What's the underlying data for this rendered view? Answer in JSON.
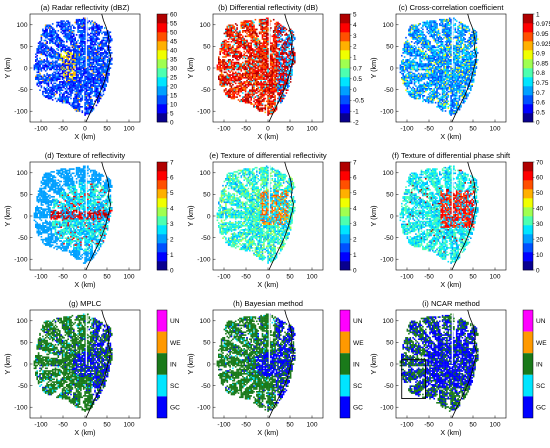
{
  "figure": {
    "panels": [
      {
        "title": "(a) Radar reflectivity (dBZ)",
        "colorbar": {
          "type": "continuous",
          "ticks": [
            "60",
            "55",
            "50",
            "45",
            "40",
            "35",
            "30",
            "25",
            "20",
            "15",
            "10",
            "5",
            "0"
          ],
          "colors": [
            "#08008f",
            "#0000ff",
            "#0050ff",
            "#00a0ff",
            "#00e5ff",
            "#4dffb0",
            "#a0ff50",
            "#f0ff00",
            "#ffb000",
            "#ff5000",
            "#ff0000",
            "#b00000"
          ]
        },
        "field": "reflectivity"
      },
      {
        "title": "(b) Differential reflectivity (dB)",
        "colorbar": {
          "type": "continuous",
          "ticks": [
            "5",
            "4",
            "3",
            "2",
            "1",
            "0.7",
            "0.5",
            "0",
            "-0.5",
            "-1",
            "-2"
          ],
          "colors": [
            "#08008f",
            "#0000ff",
            "#0050ff",
            "#00a0ff",
            "#00e5ff",
            "#4dffb0",
            "#a0ff50",
            "#f0ff00",
            "#ffb000",
            "#ff5000",
            "#ff0000",
            "#b00000"
          ]
        },
        "field": "zdr"
      },
      {
        "title": "(c) Cross-correlation coefficient",
        "colorbar": {
          "type": "continuous",
          "ticks": [
            "1",
            "0.975",
            "0.95",
            "0.925",
            "0.9",
            "0.85",
            "0.8",
            "0.75",
            "0.7",
            "0.6",
            "0.5",
            "0"
          ],
          "colors": [
            "#08008f",
            "#0000ff",
            "#0050ff",
            "#00a0ff",
            "#00e5ff",
            "#4dffb0",
            "#a0ff50",
            "#f0ff00",
            "#ffb000",
            "#ff5000",
            "#ff0000",
            "#b00000"
          ]
        },
        "field": "rhohv"
      },
      {
        "title": "(d) Texture of reflectivity",
        "colorbar": {
          "type": "continuous",
          "ticks": [
            "7",
            "6",
            "5",
            "4",
            "3",
            "2",
            "1",
            "0"
          ],
          "colors": [
            "#08008f",
            "#0000ff",
            "#0050ff",
            "#00a0ff",
            "#00e5ff",
            "#4dffb0",
            "#a0ff50",
            "#f0ff00",
            "#ffb000",
            "#ff5000",
            "#ff0000",
            "#b00000"
          ]
        },
        "field": "texz"
      },
      {
        "title": "(e) Texture of differential reflectivity",
        "colorbar": {
          "type": "continuous",
          "ticks": [
            "7",
            "6",
            "5",
            "4",
            "3",
            "2",
            "1",
            "0"
          ],
          "colors": [
            "#08008f",
            "#0000ff",
            "#0050ff",
            "#00a0ff",
            "#00e5ff",
            "#4dffb0",
            "#a0ff50",
            "#f0ff00",
            "#ffb000",
            "#ff5000",
            "#ff0000",
            "#b00000"
          ]
        },
        "field": "texzdr"
      },
      {
        "title": "(f) Texture of differential phase shift",
        "colorbar": {
          "type": "continuous",
          "ticks": [
            "70",
            "60",
            "50",
            "40",
            "30",
            "20",
            "10",
            "0"
          ],
          "colors": [
            "#08008f",
            "#0000ff",
            "#0050ff",
            "#00a0ff",
            "#00e5ff",
            "#4dffb0",
            "#a0ff50",
            "#f0ff00",
            "#ffb000",
            "#ff5000",
            "#ff0000",
            "#b00000"
          ]
        },
        "field": "texphi"
      },
      {
        "title": "(g) MPLC",
        "colorbar": {
          "type": "categorical",
          "ticks": [
            "UN",
            "WE",
            "IN",
            "SC",
            "GC"
          ],
          "colors": [
            "#ff00ff",
            "#ff9900",
            "#1a7a1a",
            "#00e5ff",
            "#0000ff"
          ]
        },
        "field": "class"
      },
      {
        "title": "(h) Bayesian method",
        "colorbar": {
          "type": "categorical",
          "ticks": [
            "UN",
            "WE",
            "IN",
            "SC",
            "GC"
          ],
          "colors": [
            "#ff00ff",
            "#ff9900",
            "#1a7a1a",
            "#00e5ff",
            "#0000ff"
          ]
        },
        "field": "class"
      },
      {
        "title": "(i) NCAR method",
        "colorbar": {
          "type": "categorical",
          "ticks": [
            "UN",
            "WE",
            "IN",
            "SC",
            "GC"
          ],
          "colors": [
            "#ff00ff",
            "#ff9900",
            "#1a7a1a",
            "#00e5ff",
            "#0000ff"
          ]
        },
        "field": "class2"
      }
    ],
    "xlabel": "X (km)",
    "ylabel": "Y (km)",
    "xticks": [
      "-100",
      "-50",
      "0",
      "50",
      "100"
    ],
    "yticks": [
      "100",
      "50",
      "0",
      "-50",
      "-100"
    ]
  },
  "chart_data": [
    {
      "type": "heatmap",
      "title": "(a) Radar reflectivity (dBZ)",
      "xlabel": "X (km)",
      "ylabel": "Y (km)",
      "xlim": [
        -125,
        125
      ],
      "ylim": [
        -125,
        125
      ],
      "colorbar_range": [
        0,
        60
      ]
    },
    {
      "type": "heatmap",
      "title": "(b) Differential reflectivity (dB)",
      "xlabel": "X (km)",
      "ylabel": "Y (km)",
      "xlim": [
        -125,
        125
      ],
      "ylim": [
        -125,
        125
      ],
      "colorbar_range": [
        -2,
        5
      ]
    },
    {
      "type": "heatmap",
      "title": "(c) Cross-correlation coefficient",
      "xlabel": "X (km)",
      "ylabel": "Y (km)",
      "xlim": [
        -125,
        125
      ],
      "ylim": [
        -125,
        125
      ],
      "colorbar_range": [
        0,
        1
      ]
    },
    {
      "type": "heatmap",
      "title": "(d) Texture of reflectivity",
      "xlabel": "X (km)",
      "ylabel": "Y (km)",
      "xlim": [
        -125,
        125
      ],
      "ylim": [
        -125,
        125
      ],
      "colorbar_range": [
        0,
        7
      ]
    },
    {
      "type": "heatmap",
      "title": "(e) Texture of differential reflectivity",
      "xlabel": "X (km)",
      "ylabel": "Y (km)",
      "xlim": [
        -125,
        125
      ],
      "ylim": [
        -125,
        125
      ],
      "colorbar_range": [
        0,
        7
      ]
    },
    {
      "type": "heatmap",
      "title": "(f) Texture of differential phase shift",
      "xlabel": "X (km)",
      "ylabel": "Y (km)",
      "xlim": [
        -125,
        125
      ],
      "ylim": [
        -125,
        125
      ],
      "colorbar_range": [
        0,
        70
      ]
    },
    {
      "type": "heatmap",
      "title": "(g) MPLC",
      "xlabel": "X (km)",
      "ylabel": "Y (km)",
      "xlim": [
        -125,
        125
      ],
      "ylim": [
        -125,
        125
      ],
      "classes": [
        "UN",
        "WE",
        "IN",
        "SC",
        "GC"
      ]
    },
    {
      "type": "heatmap",
      "title": "(h) Bayesian method",
      "xlabel": "X (km)",
      "ylabel": "Y (km)",
      "xlim": [
        -125,
        125
      ],
      "ylim": [
        -125,
        125
      ],
      "classes": [
        "UN",
        "WE",
        "IN",
        "SC",
        "GC"
      ]
    },
    {
      "type": "heatmap",
      "title": "(i) NCAR method",
      "xlabel": "X (km)",
      "ylabel": "Y (km)",
      "xlim": [
        -125,
        125
      ],
      "ylim": [
        -125,
        125
      ],
      "classes": [
        "UN",
        "WE",
        "IN",
        "SC",
        "GC"
      ]
    }
  ]
}
